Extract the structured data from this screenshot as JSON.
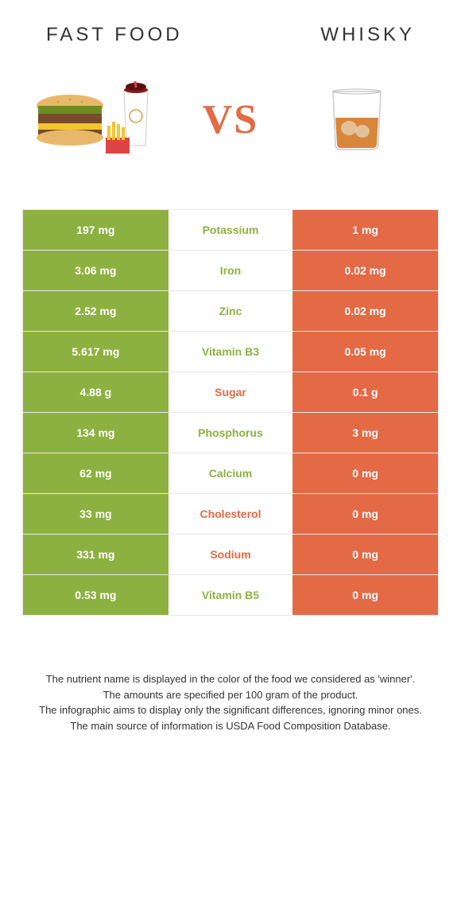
{
  "header": {
    "left_title": "FAST FOOD",
    "right_title": "WHISKY"
  },
  "vs_label": "VS",
  "colors": {
    "left_col": "#8db140",
    "right_col": "#e36a45",
    "left_text": "#8db140",
    "right_text": "#e36a45",
    "border": "#e8e8e8",
    "white": "#ffffff",
    "vs_color": "#e36a45",
    "footer_text": "#333333"
  },
  "table": {
    "rows": [
      {
        "left": "197 mg",
        "nutrient": "Potassium",
        "right": "1 mg",
        "winner": "left"
      },
      {
        "left": "3.06 mg",
        "nutrient": "Iron",
        "right": "0.02 mg",
        "winner": "left"
      },
      {
        "left": "2.52 mg",
        "nutrient": "Zinc",
        "right": "0.02 mg",
        "winner": "left"
      },
      {
        "left": "5.617 mg",
        "nutrient": "Vitamin B3",
        "right": "0.05 mg",
        "winner": "left"
      },
      {
        "left": "4.88 g",
        "nutrient": "Sugar",
        "right": "0.1 g",
        "winner": "right"
      },
      {
        "left": "134 mg",
        "nutrient": "Phosphorus",
        "right": "3 mg",
        "winner": "left"
      },
      {
        "left": "62 mg",
        "nutrient": "Calcium",
        "right": "0 mg",
        "winner": "left"
      },
      {
        "left": "33 mg",
        "nutrient": "Cholesterol",
        "right": "0 mg",
        "winner": "right"
      },
      {
        "left": "331 mg",
        "nutrient": "Sodium",
        "right": "0 mg",
        "winner": "right"
      },
      {
        "left": "0.53 mg",
        "nutrient": "Vitamin B5",
        "right": "0 mg",
        "winner": "left"
      }
    ]
  },
  "footer": {
    "line1": "The nutrient name is displayed in the color of the food we considered as 'winner'.",
    "line2": "The amounts are specified per 100 gram of the product.",
    "line3": "The infographic aims to display only the significant differences, ignoring minor ones.",
    "line4": "The main source of information is USDA Food Composition Database."
  }
}
